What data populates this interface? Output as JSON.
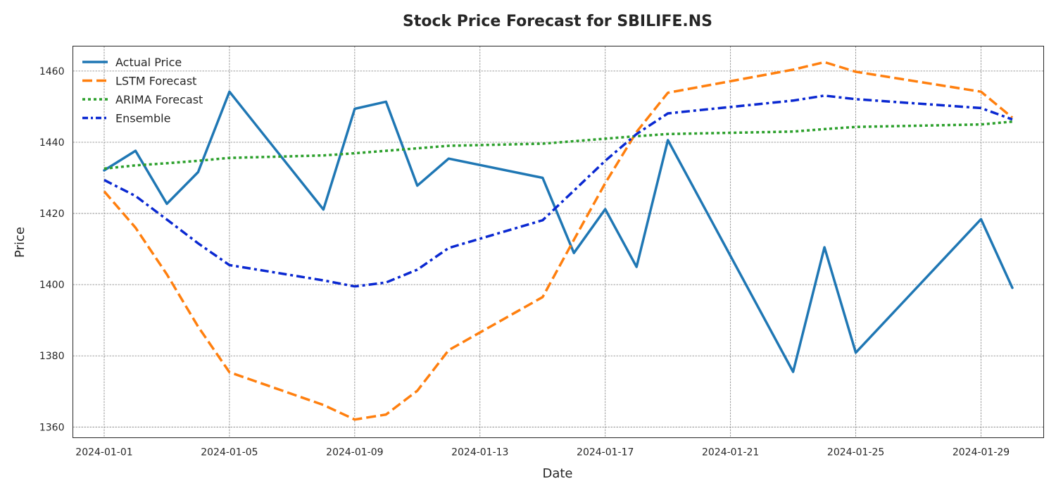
{
  "chart_data": {
    "type": "line",
    "title": "Stock Price Forecast for SBILIFE.NS",
    "xlabel": "Date",
    "ylabel": "Price",
    "grid": true,
    "legend_position": "top-left",
    "ylim": [
      1357,
      1467
    ],
    "yticks": [
      1360,
      1380,
      1400,
      1420,
      1440,
      1460
    ],
    "xlim": [
      "2023-12-31",
      "2024-01-31"
    ],
    "xticks": [
      "2024-01-01",
      "2024-01-05",
      "2024-01-09",
      "2024-01-13",
      "2024-01-17",
      "2024-01-21",
      "2024-01-25",
      "2024-01-29"
    ],
    "x": [
      "2024-01-01",
      "2024-01-02",
      "2024-01-03",
      "2024-01-04",
      "2024-01-05",
      "2024-01-08",
      "2024-01-09",
      "2024-01-10",
      "2024-01-11",
      "2024-01-12",
      "2024-01-15",
      "2024-01-16",
      "2024-01-17",
      "2024-01-18",
      "2024-01-19",
      "2024-01-23",
      "2024-01-24",
      "2024-01-25",
      "2024-01-29",
      "2024-01-30"
    ],
    "series": [
      {
        "name": "Actual Price",
        "color": "#1f77b4",
        "style": "solid",
        "values": [
          1432.1,
          1437.6,
          1422.7,
          1431.6,
          1454.2,
          1421.1,
          1449.4,
          1451.4,
          1427.8,
          1435.4,
          1430.0,
          1408.9,
          1421.2,
          1405.0,
          1440.6,
          1375.5,
          1410.5,
          1380.9,
          1418.4,
          1399.1
        ]
      },
      {
        "name": "LSTM Forecast",
        "color": "#ff7f0e",
        "style": "dashed",
        "values": [
          1426.2,
          1416.0,
          1402.9,
          1388.2,
          1375.4,
          1366.2,
          1362.1,
          1363.5,
          1370.2,
          1381.6,
          1396.5,
          1412.6,
          1428.5,
          1442.9,
          1453.9,
          1460.4,
          1462.5,
          1459.8,
          1454.2,
          1446.9
        ]
      },
      {
        "name": "ARIMA Forecast",
        "color": "#2ca02c",
        "style": "dotted",
        "values": [
          1432.6,
          1433.5,
          1434.1,
          1434.8,
          1435.6,
          1436.3,
          1436.9,
          1437.6,
          1438.3,
          1439.0,
          1439.6,
          1440.3,
          1441.0,
          1441.7,
          1442.3,
          1443.0,
          1443.7,
          1444.3,
          1445.0,
          1445.8
        ]
      },
      {
        "name": "Ensemble",
        "color": "#0a28d1",
        "style": "dashdot",
        "values": [
          1429.4,
          1424.9,
          1418.3,
          1411.6,
          1405.5,
          1401.2,
          1399.5,
          1400.6,
          1404.2,
          1410.3,
          1418.1,
          1426.4,
          1434.8,
          1442.3,
          1448.1,
          1451.7,
          1453.1,
          1452.1,
          1449.6,
          1446.4
        ]
      }
    ]
  }
}
